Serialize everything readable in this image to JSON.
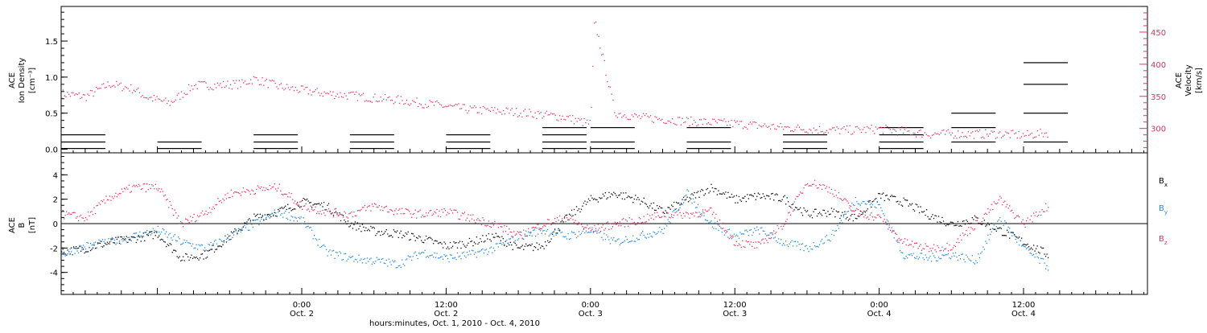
{
  "colors": {
    "density": "#000000",
    "velocity": "#e8305f",
    "bx": "#000000",
    "by": "#1f88e0",
    "bz": "#e8305f"
  },
  "x_axis": {
    "label": "hours:minutes, Oct.  1, 2010 - Oct.  4, 2010",
    "ticks": [
      {
        "time": "0:00",
        "day": "Oct. 2",
        "hours": 24
      },
      {
        "time": "12:00",
        "day": "Oct. 2",
        "hours": 36
      },
      {
        "time": "0:00",
        "day": "Oct. 3",
        "hours": 48
      },
      {
        "time": "12:00",
        "day": "Oct. 3",
        "hours": 60
      },
      {
        "time": "0:00",
        "day": "Oct. 4",
        "hours": 72
      },
      {
        "time": "12:00",
        "day": "Oct. 4",
        "hours": 84
      }
    ],
    "range_hours": [
      4.0,
      94.3
    ]
  },
  "chart_data": [
    {
      "type": "scatter",
      "panel": "top",
      "ylabel_left": [
        "ACE",
        "Ion Density",
        "[cm⁻³]"
      ],
      "ylabel_right": [
        "ACE",
        "Velocity",
        "[km/s]"
      ],
      "ylim_left": [
        -0.05,
        1.98
      ],
      "ylim_right": [
        262,
        490
      ],
      "left_ticks": [
        "0.0",
        "0.5",
        "1.0",
        "1.5"
      ],
      "right_ticks": [
        "300",
        "350",
        "400",
        "450"
      ],
      "series": [
        {
          "key": "density",
          "axis": "left",
          "points": [
            [
              4,
              0.01
            ],
            [
              4,
              0.1
            ],
            [
              4,
              0.2
            ],
            [
              12,
              0.01
            ],
            [
              12,
              0.1
            ],
            [
              20,
              0.01
            ],
            [
              20,
              0.1
            ],
            [
              20,
              0.2
            ],
            [
              28,
              0.01
            ],
            [
              28,
              0.1
            ],
            [
              28,
              0.2
            ],
            [
              36,
              0.01
            ],
            [
              36,
              0.1
            ],
            [
              36,
              0.2
            ],
            [
              44,
              0.01
            ],
            [
              44,
              0.1
            ],
            [
              44,
              0.2
            ],
            [
              44,
              0.3
            ],
            [
              48,
              0.01
            ],
            [
              48,
              0.1
            ],
            [
              48,
              0.3
            ],
            [
              56,
              0.01
            ],
            [
              56,
              0.1
            ],
            [
              56,
              0.3
            ],
            [
              64,
              0.01
            ],
            [
              64,
              0.1
            ],
            [
              64,
              0.2
            ],
            [
              72,
              0.01
            ],
            [
              72,
              0.1
            ],
            [
              72,
              0.2
            ],
            [
              72,
              0.3
            ],
            [
              78,
              0.1
            ],
            [
              78,
              0.3
            ],
            [
              78,
              0.5
            ],
            [
              84,
              0.1
            ],
            [
              84,
              0.5
            ],
            [
              84,
              0.9
            ],
            [
              84,
              1.2
            ]
          ]
        },
        {
          "key": "velocity",
          "axis": "right",
          "points": [
            [
              4,
              355
            ],
            [
              6,
              350
            ],
            [
              8,
              370
            ],
            [
              10,
              362
            ],
            [
              11,
              350
            ],
            [
              13,
              340
            ],
            [
              15,
              368
            ],
            [
              17,
              368
            ],
            [
              19,
              370
            ],
            [
              20,
              378
            ],
            [
              22,
              366
            ],
            [
              24,
              360
            ],
            [
              26,
              355
            ],
            [
              28,
              352
            ],
            [
              30,
              348
            ],
            [
              32,
              345
            ],
            [
              34,
              340
            ],
            [
              36,
              335
            ],
            [
              38,
              330
            ],
            [
              40,
              328
            ],
            [
              42,
              326
            ],
            [
              44,
              322
            ],
            [
              46,
              318
            ],
            [
              47,
              312
            ],
            [
              48,
              308
            ],
            [
              48.3,
              470
            ],
            [
              50,
              325
            ],
            [
              52,
              318
            ],
            [
              54,
              315
            ],
            [
              56,
              312
            ],
            [
              58,
              310
            ],
            [
              60,
              308
            ],
            [
              62,
              305
            ],
            [
              64,
              302
            ],
            [
              66,
              300
            ],
            [
              68,
              298
            ],
            [
              70,
              298
            ],
            [
              72,
              300
            ],
            [
              74,
              296
            ],
            [
              76,
              292
            ],
            [
              78,
              292
            ],
            [
              80,
              292
            ],
            [
              82,
              292
            ],
            [
              84,
              290
            ],
            [
              86,
              294
            ]
          ]
        }
      ]
    },
    {
      "type": "scatter",
      "panel": "bottom",
      "ylabel_left": [
        "ACE",
        "B",
        "[nT]"
      ],
      "ylim": [
        -5.8,
        5.8
      ],
      "left_ticks": [
        "-4",
        "-2",
        "0",
        "2",
        "4"
      ],
      "series": [
        {
          "key": "bx",
          "name": "B",
          "sub": "x",
          "points": [
            [
              4,
              -2.3
            ],
            [
              6,
              -2.0
            ],
            [
              8,
              -1.5
            ],
            [
              10,
              -1.2
            ],
            [
              12,
              -0.8
            ],
            [
              14,
              -2.8
            ],
            [
              16,
              -2.5
            ],
            [
              18,
              -1.0
            ],
            [
              20,
              0.5
            ],
            [
              22,
              1.0
            ],
            [
              24,
              1.8
            ],
            [
              26,
              1.5
            ],
            [
              28,
              0.0
            ],
            [
              30,
              -0.6
            ],
            [
              32,
              -0.8
            ],
            [
              34,
              -1.2
            ],
            [
              36,
              -1.8
            ],
            [
              38,
              -1.5
            ],
            [
              40,
              -1.0
            ],
            [
              42,
              -2.0
            ],
            [
              44,
              -1.8
            ],
            [
              46,
              0.5
            ],
            [
              48,
              2.0
            ],
            [
              50,
              2.5
            ],
            [
              52,
              2.0
            ],
            [
              54,
              1.0
            ],
            [
              56,
              2.0
            ],
            [
              58,
              3.0
            ],
            [
              60,
              2.0
            ],
            [
              62,
              2.3
            ],
            [
              64,
              2.1
            ],
            [
              66,
              0.8
            ],
            [
              68,
              1.0
            ],
            [
              70,
              0.5
            ],
            [
              72,
              2.3
            ],
            [
              74,
              1.8
            ],
            [
              76,
              0.8
            ],
            [
              78,
              0.0
            ],
            [
              80,
              0.4
            ],
            [
              82,
              -0.5
            ],
            [
              84,
              -1.5
            ],
            [
              86,
              -2.5
            ]
          ]
        },
        {
          "key": "by",
          "name": "B",
          "sub": "y",
          "points": [
            [
              4,
              -2.5
            ],
            [
              6,
              -1.8
            ],
            [
              8,
              -1.5
            ],
            [
              10,
              -1.0
            ],
            [
              12,
              -0.5
            ],
            [
              14,
              -1.5
            ],
            [
              16,
              -2.0
            ],
            [
              18,
              -1.0
            ],
            [
              20,
              0.0
            ],
            [
              22,
              1.0
            ],
            [
              24,
              0.3
            ],
            [
              26,
              -2.3
            ],
            [
              28,
              -2.8
            ],
            [
              30,
              -3.0
            ],
            [
              32,
              -3.3
            ],
            [
              34,
              -2.3
            ],
            [
              36,
              -2.8
            ],
            [
              38,
              -2.5
            ],
            [
              40,
              -2.0
            ],
            [
              42,
              -1.0
            ],
            [
              44,
              -0.5
            ],
            [
              46,
              -1.0
            ],
            [
              48,
              -0.5
            ],
            [
              50,
              -1.5
            ],
            [
              52,
              -1.0
            ],
            [
              54,
              -0.5
            ],
            [
              56,
              2.5
            ],
            [
              58,
              0.0
            ],
            [
              60,
              -1.0
            ],
            [
              62,
              -0.5
            ],
            [
              64,
              -1.5
            ],
            [
              66,
              -2.0
            ],
            [
              68,
              -1.0
            ],
            [
              70,
              2.0
            ],
            [
              72,
              1.5
            ],
            [
              74,
              -2.5
            ],
            [
              76,
              -2.8
            ],
            [
              78,
              -2.5
            ],
            [
              80,
              -3.0
            ],
            [
              82,
              0.5
            ],
            [
              84,
              -2.0
            ],
            [
              86,
              -3.5
            ]
          ]
        },
        {
          "key": "bz",
          "name": "B",
          "sub": "z",
          "points": [
            [
              4,
              0.8
            ],
            [
              6,
              0.5
            ],
            [
              8,
              2.2
            ],
            [
              10,
              3.0
            ],
            [
              12,
              3.0
            ],
            [
              14,
              0.0
            ],
            [
              16,
              1.0
            ],
            [
              18,
              2.5
            ],
            [
              20,
              2.8
            ],
            [
              22,
              3.0
            ],
            [
              24,
              1.5
            ],
            [
              26,
              1.0
            ],
            [
              28,
              0.8
            ],
            [
              30,
              1.5
            ],
            [
              32,
              1.0
            ],
            [
              34,
              0.8
            ],
            [
              36,
              1.0
            ],
            [
              38,
              0.5
            ],
            [
              40,
              0.0
            ],
            [
              42,
              -1.0
            ],
            [
              44,
              0.0
            ],
            [
              46,
              0.5
            ],
            [
              48,
              -0.5
            ],
            [
              50,
              0.0
            ],
            [
              52,
              0.3
            ],
            [
              54,
              0.8
            ],
            [
              56,
              0.8
            ],
            [
              58,
              1.0
            ],
            [
              60,
              -1.5
            ],
            [
              62,
              -1.8
            ],
            [
              64,
              0.0
            ],
            [
              66,
              3.5
            ],
            [
              68,
              2.8
            ],
            [
              70,
              1.0
            ],
            [
              72,
              0.5
            ],
            [
              74,
              -1.5
            ],
            [
              76,
              -2.0
            ],
            [
              78,
              -1.8
            ],
            [
              80,
              0.0
            ],
            [
              82,
              2.0
            ],
            [
              84,
              0.0
            ],
            [
              86,
              1.5
            ]
          ]
        }
      ]
    }
  ]
}
